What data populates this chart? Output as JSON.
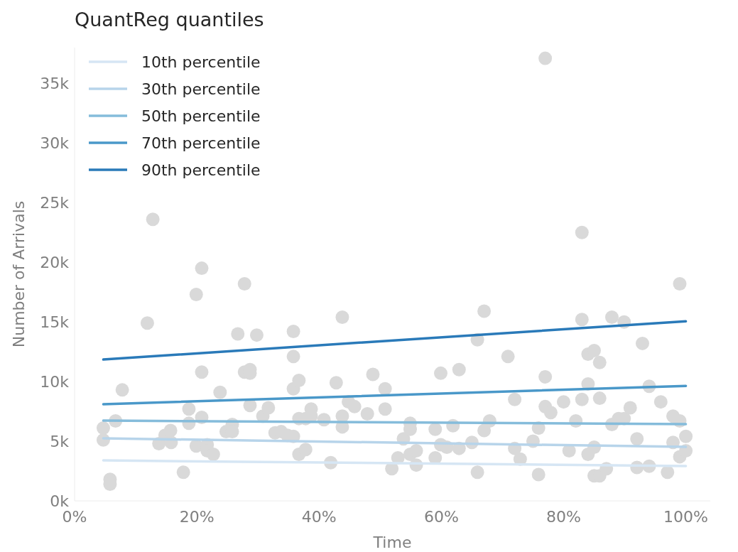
{
  "chart_data": {
    "type": "scatter",
    "title": "QuantReg quantiles",
    "xlabel": "Time",
    "ylabel": "Number of Arrivals",
    "xlim": [
      0,
      1.04
    ],
    "xticks": [
      {
        "value": 0,
        "label": "0%"
      },
      {
        "value": 0.2,
        "label": "20%"
      },
      {
        "value": 0.4,
        "label": "40%"
      },
      {
        "value": 0.6,
        "label": "60%"
      },
      {
        "value": 0.8,
        "label": "80%"
      },
      {
        "value": 1,
        "label": "100%"
      }
    ],
    "ylim": [
      0,
      38000
    ],
    "yticks": [
      {
        "value": 0,
        "label": "0k"
      },
      {
        "value": 5000,
        "label": "5k"
      },
      {
        "value": 10000,
        "label": "10k"
      },
      {
        "value": 15000,
        "label": "15k"
      },
      {
        "value": 20000,
        "label": "20k"
      },
      {
        "value": 25000,
        "label": "25k"
      },
      {
        "value": 30000,
        "label": "30k"
      },
      {
        "value": 35000,
        "label": "35k"
      }
    ],
    "grid": false,
    "legend": "top left",
    "series": [
      {
        "marker": "circle",
        "color": "#d9d9d9",
        "x": [
          0.047,
          0.047,
          0.058,
          0.058,
          0.067,
          0.078,
          0.119,
          0.128,
          0.138,
          0.148,
          0.157,
          0.158,
          0.178,
          0.187,
          0.187,
          0.199,
          0.199,
          0.208,
          0.208,
          0.208,
          0.217,
          0.217,
          0.227,
          0.238,
          0.248,
          0.258,
          0.258,
          0.267,
          0.278,
          0.278,
          0.287,
          0.287,
          0.287,
          0.298,
          0.308,
          0.317,
          0.328,
          0.338,
          0.348,
          0.358,
          0.358,
          0.358,
          0.358,
          0.367,
          0.367,
          0.367,
          0.378,
          0.378,
          0.387,
          0.387,
          0.408,
          0.419,
          0.428,
          0.438,
          0.438,
          0.438,
          0.448,
          0.458,
          0.479,
          0.488,
          0.508,
          0.508,
          0.519,
          0.529,
          0.538,
          0.549,
          0.549,
          0.549,
          0.559,
          0.559,
          0.59,
          0.59,
          0.599,
          0.599,
          0.609,
          0.619,
          0.629,
          0.629,
          0.65,
          0.659,
          0.659,
          0.67,
          0.67,
          0.679,
          0.709,
          0.72,
          0.72,
          0.729,
          0.75,
          0.759,
          0.759,
          0.77,
          0.77,
          0.77,
          0.779,
          0.8,
          0.809,
          0.82,
          0.83,
          0.83,
          0.83,
          0.84,
          0.84,
          0.84,
          0.85,
          0.85,
          0.85,
          0.859,
          0.859,
          0.859,
          0.87,
          0.879,
          0.879,
          0.89,
          0.899,
          0.899,
          0.909,
          0.92,
          0.92,
          0.929,
          0.94,
          0.94,
          0.959,
          0.97,
          0.979,
          0.979,
          0.99,
          0.99,
          0.99,
          1.0,
          1.0
        ],
        "values": [
          6100,
          5100,
          1800,
          1400,
          6700,
          9300,
          14900,
          23600,
          4800,
          5500,
          5900,
          4900,
          2400,
          7700,
          6500,
          17300,
          4600,
          19500,
          10800,
          7000,
          4700,
          4200,
          3900,
          9100,
          5800,
          6400,
          5800,
          14000,
          18200,
          10800,
          11000,
          10700,
          8000,
          13900,
          7100,
          7800,
          5700,
          5800,
          5500,
          14200,
          12100,
          9400,
          5400,
          10100,
          3900,
          6900,
          6900,
          4300,
          7700,
          7100,
          6800,
          3200,
          9900,
          15400,
          7100,
          6200,
          8300,
          7900,
          7300,
          10600,
          9400,
          7700,
          2700,
          3600,
          5200,
          6500,
          6000,
          3900,
          4200,
          3000,
          6000,
          3600,
          10700,
          4700,
          4500,
          6300,
          11000,
          4400,
          4900,
          2400,
          13500,
          15900,
          5900,
          6700,
          12100,
          8500,
          4400,
          3500,
          5000,
          6100,
          2200,
          37100,
          10400,
          7900,
          7400,
          8300,
          4200,
          6700,
          22500,
          15200,
          8500,
          12300,
          9800,
          3900,
          12600,
          4500,
          2100,
          11600,
          8600,
          2100,
          2700,
          15400,
          6400,
          6900,
          15000,
          6900,
          7800,
          5200,
          2800,
          13200,
          9600,
          2900,
          8300,
          2400,
          7100,
          4900,
          18200,
          6700,
          3700,
          5400,
          4200
        ]
      },
      {
        "type": "line",
        "name": "10th percentile",
        "color": "#d6e6f4",
        "x": [
          0.047,
          1.0
        ],
        "values": [
          3390,
          2920
        ]
      },
      {
        "type": "line",
        "name": "30th percentile",
        "color": "#b7d4ea",
        "x": [
          0.047,
          1.0
        ],
        "values": [
          5240,
          4520
        ]
      },
      {
        "type": "line",
        "name": "50th percentile",
        "color": "#85bcdb",
        "x": [
          0.047,
          1.0
        ],
        "values": [
          6730,
          6430
        ]
      },
      {
        "type": "line",
        "name": "70th percentile",
        "color": "#4a98c9",
        "x": [
          0.047,
          1.0
        ],
        "values": [
          8100,
          9640
        ]
      },
      {
        "type": "line",
        "name": "90th percentile",
        "color": "#2a7ab9",
        "x": [
          0.047,
          1.0
        ],
        "values": [
          11850,
          15060
        ]
      }
    ]
  }
}
